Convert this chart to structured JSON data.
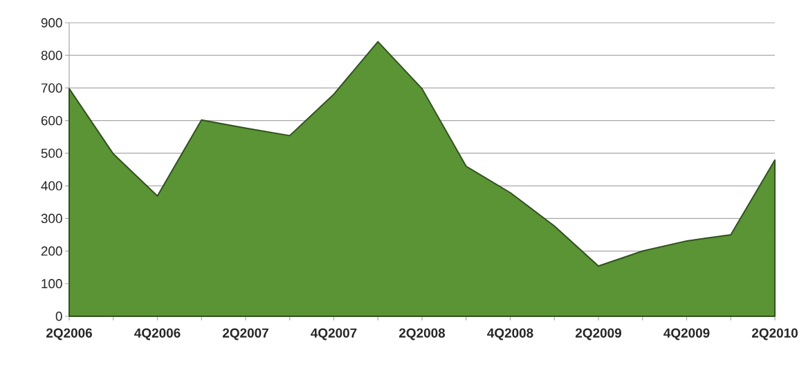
{
  "chart_data": {
    "type": "area",
    "categories": [
      "2Q2006",
      null,
      "4Q2006",
      null,
      "2Q2007",
      null,
      "4Q2007",
      null,
      "2Q2008",
      null,
      "4Q2008",
      null,
      "2Q2009",
      null,
      "4Q2009",
      null,
      "2Q2010"
    ],
    "values": [
      698,
      498,
      369,
      602,
      577,
      554,
      681,
      842,
      698,
      460,
      379,
      277,
      154,
      200,
      231,
      250,
      479
    ],
    "color": "#5a9435",
    "ylim": [
      0,
      900
    ],
    "yticks": [
      0,
      100,
      200,
      300,
      400,
      500,
      600,
      700,
      800,
      900
    ],
    "grid": "y"
  }
}
